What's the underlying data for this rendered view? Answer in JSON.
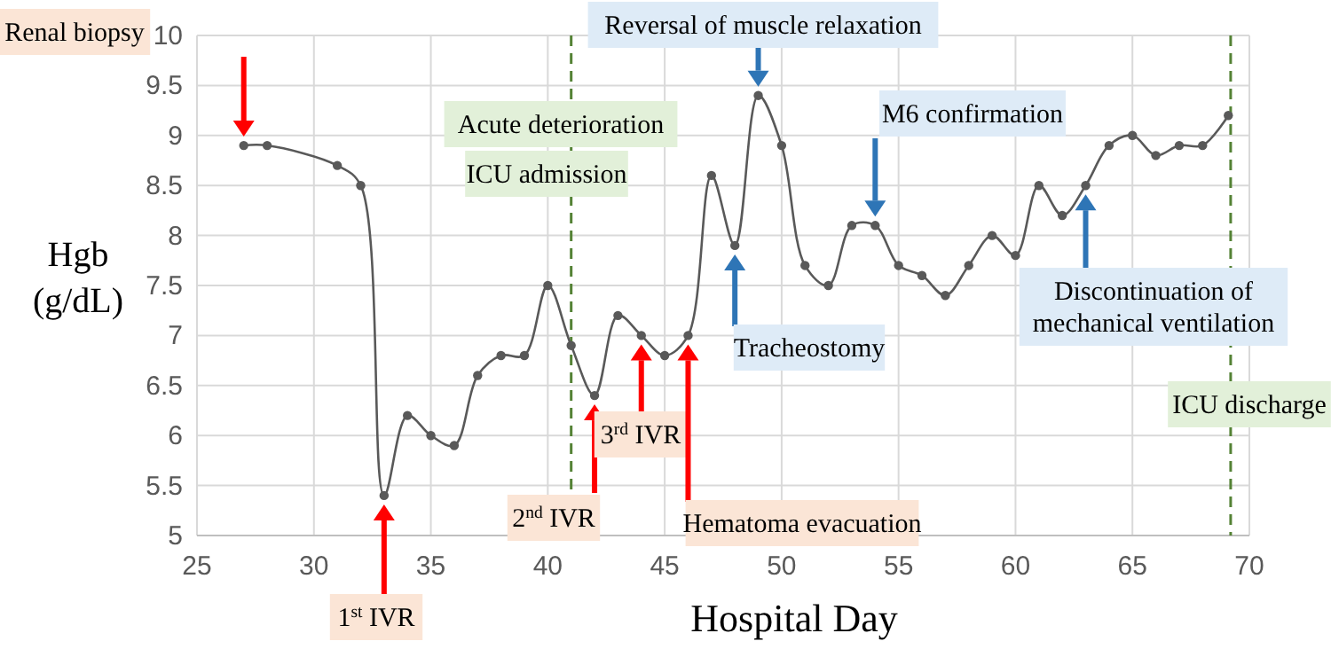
{
  "chart_data": {
    "type": "line",
    "xlabel": "Hospital Day",
    "ylabel": "Hgb (g/dL)",
    "x": [
      27,
      28,
      31,
      32,
      33,
      34,
      35,
      36,
      37,
      38,
      39,
      40,
      41,
      42,
      43,
      44,
      45,
      46,
      47,
      48,
      49,
      50,
      51,
      52,
      53,
      54,
      55,
      56,
      57,
      58,
      59,
      60,
      61,
      62,
      63,
      64,
      65,
      66,
      67,
      68,
      69.1
    ],
    "values": [
      8.9,
      8.9,
      8.7,
      8.5,
      5.4,
      6.2,
      6.0,
      5.9,
      6.6,
      6.8,
      6.8,
      7.5,
      6.9,
      6.4,
      7.2,
      7.0,
      6.8,
      7.0,
      8.6,
      7.9,
      9.4,
      8.9,
      7.7,
      7.5,
      8.1,
      8.1,
      7.7,
      7.6,
      7.4,
      7.7,
      8.0,
      7.8,
      8.5,
      8.2,
      8.5,
      8.9,
      9.0,
      8.8,
      8.9,
      8.9,
      9.2
    ],
    "color": "#595959",
    "marker": "circle",
    "line_style": "solid",
    "grid": true,
    "xlim": [
      25,
      70
    ],
    "xticks": [
      25,
      30,
      35,
      40,
      45,
      50,
      55,
      60,
      65,
      70
    ],
    "ylim": [
      5,
      10
    ],
    "yticks": [
      5,
      5.5,
      6,
      6.5,
      7,
      7.5,
      8,
      8.5,
      9,
      9.5,
      10
    ],
    "ref_lines": [
      {
        "axis": "x",
        "value": 41,
        "label": "ICU admission",
        "color": "#548235",
        "line_style": "dashed"
      },
      {
        "axis": "x",
        "value": 69.2,
        "label": "ICU discharge",
        "color": "#548235",
        "line_style": "dashed"
      }
    ],
    "annotations": [
      "Renal biopsy",
      "1$^{st}$ IVR",
      "2$^{nd}$ IVR",
      "3$^{rd}$ IVR",
      "Hematoma evacuation",
      "Tracheostomy",
      "Reversal of muscle relaxation",
      "M6 confirmation",
      "Discontinuation of mechanical ventilation",
      "Acute deterioration"
    ]
  }
}
